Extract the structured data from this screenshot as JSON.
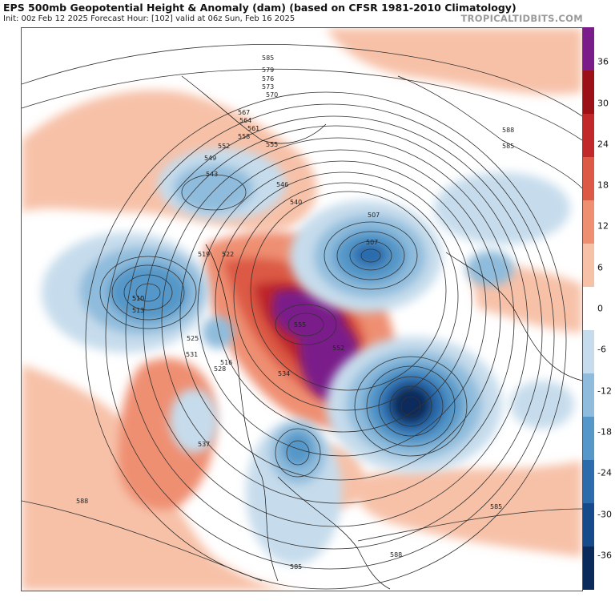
{
  "header": {
    "title": "EPS 500mb Geopotential Height & Anomaly (dam) (based on CFSR 1981-2010 Climatology)",
    "subtitle": "Init: 00z Feb 12 2025   Forecast Hour: [102]   valid at 06z Sun, Feb 16 2025",
    "brand": "TROPICALTIDBITS.COM"
  },
  "colorbar": {
    "ticks": [
      "36",
      "30",
      "24",
      "18",
      "12",
      "6",
      "0",
      "-6",
      "-12",
      "-18",
      "-24",
      "-30",
      "-36"
    ],
    "swatches": [
      {
        "label": "36+",
        "color": "#7a1d8a"
      },
      {
        "label": "30",
        "color": "#9c1018"
      },
      {
        "label": "24",
        "color": "#c0282a"
      },
      {
        "label": "18",
        "color": "#dc5a45"
      },
      {
        "label": "12",
        "color": "#ef8f72"
      },
      {
        "label": "6",
        "color": "#f7c1a8"
      },
      {
        "label": "0",
        "color": "#ffffff"
      },
      {
        "label": "-6",
        "color": "#c6dcec"
      },
      {
        "label": "-12",
        "color": "#8fbcdc"
      },
      {
        "label": "-18",
        "color": "#5597c8"
      },
      {
        "label": "-24",
        "color": "#2c6cad"
      },
      {
        "label": "-30",
        "color": "#154b8a"
      },
      {
        "label": "-36",
        "color": "#0b2a5c"
      }
    ]
  },
  "map": {
    "contour_labels": [
      "585",
      "579",
      "576",
      "573",
      "570",
      "567",
      "564",
      "561",
      "558",
      "555",
      "552",
      "549",
      "546",
      "543",
      "540",
      "537",
      "534",
      "531",
      "528",
      "525",
      "522",
      "519",
      "516",
      "513",
      "510",
      "507",
      "588"
    ],
    "anomaly_centers": [
      {
        "label": "positive-anomaly-center",
        "value": "555"
      },
      {
        "label": "positive-anomaly-center-2",
        "value": "552"
      },
      {
        "label": "negative-anomaly-center-atlantic",
        "value": "507"
      },
      {
        "label": "negative-anomaly-center-pacific",
        "value": "510"
      }
    ]
  }
}
